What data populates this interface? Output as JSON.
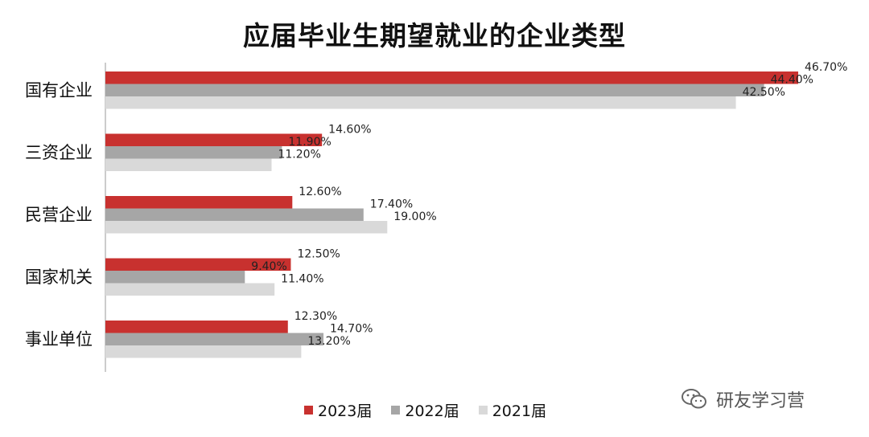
{
  "chart_data": {
    "type": "bar",
    "orientation": "horizontal",
    "title": "应届毕业生期望就业的企业类型",
    "categories": [
      "国有企业",
      "三资企业",
      "民营企业",
      "国家机关",
      "事业单位"
    ],
    "series": [
      {
        "name": "2023届",
        "color": "#c8312f",
        "values": [
          46.7,
          14.6,
          12.6,
          12.5,
          12.3
        ],
        "labels": [
          "46.70%",
          "14.60%",
          "12.60%",
          "12.50%",
          "12.30%"
        ]
      },
      {
        "name": "2022届",
        "color": "#a6a6a6",
        "values": [
          44.4,
          11.9,
          17.4,
          9.4,
          14.7
        ],
        "labels": [
          "44.40%",
          "11.90%",
          "17.40%",
          "9.40%",
          "14.70%"
        ]
      },
      {
        "name": "2021届",
        "color": "#d9d9d9",
        "values": [
          42.5,
          11.2,
          19.0,
          11.4,
          13.2
        ],
        "labels": [
          "42.50%",
          "11.20%",
          "19.00%",
          "11.40%",
          "13.20%"
        ]
      }
    ],
    "xlim": [
      0,
      50
    ],
    "grid": false,
    "legend_position": "bottom"
  },
  "watermark": {
    "text": "研友学习营"
  }
}
